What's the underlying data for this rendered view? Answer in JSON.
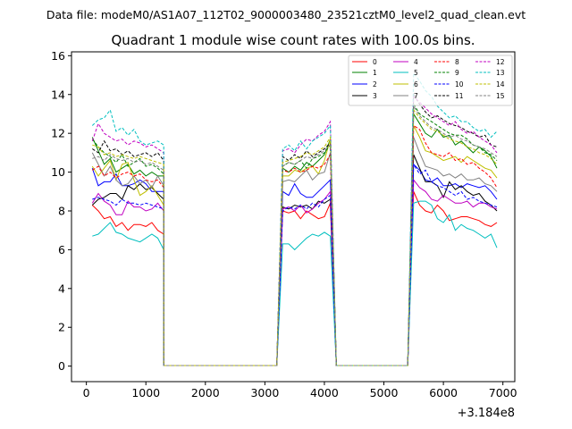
{
  "suptitle": "Data file: modeM0/AS1A07_112T02_9000003480_23521cztM0_level2_quad_clean.evt",
  "chart_data": {
    "type": "line",
    "title": "Quadrant 1 module wise count rates with 100.0s bins.",
    "xlabel": "",
    "ylabel": "",
    "x_offset_label": "+3.184e8",
    "xlim": [
      -250,
      7200
    ],
    "ylim": [
      -0.8,
      16.2
    ],
    "xticks": [
      0,
      1000,
      2000,
      3000,
      4000,
      5000,
      6000,
      7000
    ],
    "yticks": [
      0,
      2,
      4,
      6,
      8,
      10,
      12,
      14,
      16
    ],
    "grid": false,
    "legend_position": "top-right",
    "segments": [
      {
        "x_start": 100,
        "step": 100,
        "count": 13
      },
      {
        "x_start": 1300,
        "step": 100,
        "count": 1
      },
      {
        "x_start": 1400,
        "step": 100,
        "count": 19
      },
      {
        "x_start": 3300,
        "step": 100,
        "count": 9
      },
      {
        "x_start": 4200,
        "step": 100,
        "count": 13
      },
      {
        "x_start": 5500,
        "step": 100,
        "count": 15
      }
    ],
    "series": [
      {
        "name": "0",
        "color": "#ff0000",
        "dash": false,
        "g1": [
          8.3,
          8.0,
          7.6,
          7.7,
          7.2,
          7.4,
          7.0,
          7.3,
          7.3,
          7.2,
          7.4,
          7.0,
          6.8
        ],
        "g2": [
          8.0,
          7.9,
          8.0,
          7.6,
          8.0,
          7.8,
          7.6,
          7.7,
          8.4
        ],
        "g3": [
          9.0,
          8.3,
          8.0,
          7.9,
          8.3,
          8.0,
          7.5,
          7.6,
          7.7,
          7.7,
          7.6,
          7.5,
          7.3,
          7.2,
          7.4
        ]
      },
      {
        "name": "1",
        "color": "#008000",
        "dash": false,
        "g1": [
          11.8,
          11.1,
          10.4,
          10.7,
          10.0,
          10.2,
          10.4,
          9.9,
          10.1,
          9.8,
          10.0,
          9.8,
          9.8
        ],
        "g2": [
          10.2,
          10.0,
          10.3,
          10.1,
          10.5,
          10.3,
          10.6,
          10.9,
          11.7
        ],
        "g3": [
          13.0,
          12.5,
          12.0,
          11.8,
          12.2,
          11.8,
          11.9,
          11.4,
          11.6,
          11.3,
          11.0,
          11.3,
          11.1,
          10.8,
          10.2
        ]
      },
      {
        "name": "2",
        "color": "#0000ff",
        "dash": false,
        "g1": [
          10.2,
          9.3,
          9.5,
          9.5,
          9.9,
          9.3,
          9.3,
          9.4,
          9.6,
          9.4,
          9.0,
          9.0,
          9.0
        ],
        "g2": [
          9.0,
          8.8,
          9.4,
          8.9,
          8.7,
          8.7,
          9.0,
          9.3,
          9.6
        ],
        "g3": [
          10.4,
          10.1,
          9.6,
          9.5,
          9.7,
          9.3,
          9.3,
          9.4,
          9.2,
          9.4,
          9.3,
          9.2,
          9.3,
          9.0,
          8.6
        ]
      },
      {
        "name": "3",
        "color": "#000000",
        "dash": false,
        "g1": [
          8.3,
          8.6,
          8.7,
          8.9,
          8.9,
          8.6,
          9.3,
          9.1,
          9.4,
          9.1,
          9.2,
          8.9,
          8.6
        ],
        "g2": [
          8.2,
          8.1,
          8.3,
          8.2,
          8.3,
          8.1,
          8.5,
          8.4,
          8.6
        ],
        "g3": [
          10.9,
          10.2,
          9.5,
          9.5,
          9.3,
          8.7,
          9.5,
          9.1,
          9.3,
          9.0,
          8.8,
          8.9,
          8.5,
          8.3,
          8.0
        ]
      },
      {
        "name": "4",
        "color": "#c000c0",
        "dash": false,
        "g1": [
          8.4,
          8.9,
          8.5,
          8.3,
          7.8,
          7.8,
          8.5,
          8.2,
          8.2,
          8.0,
          8.1,
          8.4,
          8.0
        ],
        "g2": [
          8.1,
          8.2,
          8.0,
          8.3,
          7.9,
          8.1,
          8.4,
          8.6,
          9.0
        ],
        "g3": [
          9.6,
          9.2,
          9.0,
          8.6,
          8.5,
          8.8,
          8.6,
          8.4,
          8.4,
          8.5,
          8.2,
          8.4,
          8.4,
          8.2,
          8.1
        ]
      },
      {
        "name": "5",
        "color": "#00bfbf",
        "dash": false,
        "g1": [
          6.7,
          6.8,
          7.1,
          7.4,
          6.9,
          6.8,
          6.6,
          6.5,
          6.4,
          6.6,
          6.8,
          6.6,
          6.0
        ],
        "g2": [
          6.3,
          6.3,
          6.0,
          6.3,
          6.6,
          6.8,
          6.7,
          6.9,
          6.7
        ],
        "g3": [
          8.4,
          8.5,
          8.5,
          8.3,
          7.6,
          7.4,
          7.8,
          7.0,
          7.3,
          7.1,
          7.0,
          6.8,
          6.6,
          6.8,
          6.1
        ]
      },
      {
        "name": "6",
        "color": "#bfbf00",
        "dash": false,
        "g1": [
          10.3,
          9.8,
          10.2,
          10.6,
          9.6,
          10.4,
          10.5,
          9.6,
          8.8,
          9.0,
          9.3,
          8.8,
          8.3
        ],
        "g2": [
          9.8,
          9.8,
          10.1,
          10.0,
          10.2,
          10.3,
          9.9,
          10.6,
          11.7
        ],
        "g3": [
          12.4,
          11.8,
          11.1,
          11.0,
          10.8,
          10.6,
          10.7,
          10.8,
          10.5,
          10.8,
          10.6,
          10.4,
          10.2,
          10.1,
          9.7
        ]
      },
      {
        "name": "7",
        "color": "#808080",
        "dash": false,
        "g1": [
          11.0,
          10.4,
          9.8,
          10.3,
          9.6,
          9.3,
          9.4,
          9.8,
          9.4,
          9.6,
          9.2,
          9.8,
          9.3
        ],
        "g2": [
          9.5,
          9.6,
          9.5,
          9.8,
          10.1,
          9.6,
          9.9,
          10.0,
          11.0
        ],
        "g3": [
          11.8,
          11.0,
          10.3,
          10.2,
          10.1,
          9.8,
          9.9,
          9.7,
          9.9,
          9.6,
          9.6,
          9.7,
          9.4,
          9.3,
          9.0
        ]
      },
      {
        "name": "8",
        "color": "#ff0000",
        "dash": true,
        "g1": [
          10.1,
          10.3,
          9.8,
          10.0,
          9.7,
          9.9,
          10.0,
          9.8,
          9.9,
          9.6,
          9.5,
          9.6,
          9.2
        ],
        "g2": [
          10.1,
          10.0,
          10.2,
          10.0,
          10.1,
          10.3,
          10.2,
          10.4,
          10.9
        ],
        "g3": [
          12.4,
          12.2,
          11.5,
          11.0,
          10.9,
          10.8,
          11.0,
          10.6,
          10.7,
          10.4,
          10.5,
          10.2,
          10.0,
          9.7,
          9.2
        ]
      },
      {
        "name": "9",
        "color": "#008000",
        "dash": true,
        "g1": [
          11.7,
          11.3,
          11.0,
          10.8,
          10.5,
          10.9,
          10.3,
          10.5,
          10.7,
          10.3,
          10.4,
          10.2,
          9.9
        ],
        "g2": [
          10.3,
          10.5,
          10.4,
          10.6,
          10.2,
          10.7,
          10.8,
          11.0,
          11.4
        ],
        "g3": [
          13.5,
          13.0,
          12.8,
          12.6,
          12.4,
          12.2,
          12.0,
          11.9,
          11.9,
          11.7,
          11.4,
          11.3,
          11.0,
          10.9,
          10.6
        ]
      },
      {
        "name": "10",
        "color": "#0000ff",
        "dash": true,
        "g1": [
          8.6,
          8.7,
          8.6,
          8.5,
          8.3,
          8.6,
          8.4,
          8.4,
          8.3,
          8.4,
          8.3,
          8.2,
          8.1
        ],
        "g2": [
          8.0,
          8.2,
          8.1,
          8.3,
          8.1,
          8.4,
          8.2,
          8.6,
          8.8
        ],
        "g3": [
          10.4,
          9.9,
          10.1,
          9.5,
          9.3,
          9.2,
          9.0,
          8.8,
          9.0,
          8.6,
          8.7,
          8.5,
          8.4,
          8.3,
          8.2
        ]
      },
      {
        "name": "11",
        "color": "#000000",
        "dash": true,
        "g1": [
          11.2,
          11.0,
          11.6,
          11.1,
          11.2,
          10.9,
          11.1,
          10.8,
          10.9,
          11.0,
          10.8,
          11.0,
          10.6
        ],
        "g2": [
          10.8,
          10.6,
          10.9,
          10.7,
          11.1,
          10.8,
          11.0,
          11.2,
          11.5
        ],
        "g3": [
          14.0,
          13.5,
          13.1,
          12.8,
          12.9,
          12.7,
          12.5,
          12.4,
          12.3,
          12.1,
          12.0,
          11.8,
          11.9,
          11.4,
          11.3
        ]
      },
      {
        "name": "12",
        "color": "#c000c0",
        "dash": true,
        "g1": [
          11.6,
          12.5,
          12.0,
          11.8,
          11.6,
          11.7,
          11.4,
          11.6,
          11.5,
          11.3,
          11.4,
          11.2,
          11.0
        ],
        "g2": [
          11.1,
          11.2,
          11.0,
          11.4,
          11.7,
          11.6,
          11.9,
          12.1,
          12.6
        ],
        "g3": [
          13.9,
          13.6,
          13.3,
          13.0,
          12.8,
          12.6,
          12.4,
          12.6,
          12.2,
          12.0,
          12.1,
          11.8,
          11.6,
          11.4,
          11.0
        ]
      },
      {
        "name": "13",
        "color": "#00bfbf",
        "dash": true,
        "g1": [
          12.4,
          12.7,
          12.8,
          13.2,
          12.1,
          12.3,
          11.9,
          12.2,
          11.6,
          11.4,
          11.5,
          11.6,
          11.4
        ],
        "g2": [
          11.2,
          11.4,
          11.1,
          11.6,
          11.2,
          11.6,
          11.8,
          12.0,
          12.4
        ],
        "g3": [
          15.1,
          14.7,
          14.2,
          13.9,
          13.4,
          13.1,
          12.8,
          12.9,
          12.6,
          12.6,
          12.3,
          12.1,
          12.2,
          11.8,
          12.1
        ]
      },
      {
        "name": "14",
        "color": "#bfbf00",
        "dash": true,
        "g1": [
          11.4,
          11.3,
          10.9,
          11.0,
          10.8,
          10.9,
          10.8,
          10.7,
          10.8,
          10.7,
          10.6,
          10.5,
          10.4
        ],
        "g2": [
          10.5,
          10.6,
          10.7,
          10.8,
          11.0,
          10.9,
          11.1,
          11.3,
          11.8
        ],
        "g3": [
          13.2,
          12.8,
          12.5,
          12.2,
          12.1,
          11.9,
          11.7,
          11.6,
          11.5,
          11.3,
          11.2,
          11.0,
          10.9,
          10.7,
          10.4
        ]
      },
      {
        "name": "15",
        "color": "#808080",
        "dash": true,
        "g1": [
          10.7,
          10.8,
          10.6,
          10.9,
          10.7,
          10.6,
          10.7,
          10.5,
          10.6,
          10.4,
          10.5,
          10.3,
          10.1
        ],
        "g2": [
          10.3,
          10.5,
          10.4,
          10.6,
          10.8,
          10.7,
          10.9,
          11.1,
          11.4
        ],
        "g3": [
          13.4,
          12.9,
          12.6,
          12.3,
          12.2,
          12.0,
          11.8,
          11.9,
          11.7,
          11.6,
          11.4,
          11.3,
          11.2,
          11.0,
          10.8
        ]
      }
    ]
  }
}
